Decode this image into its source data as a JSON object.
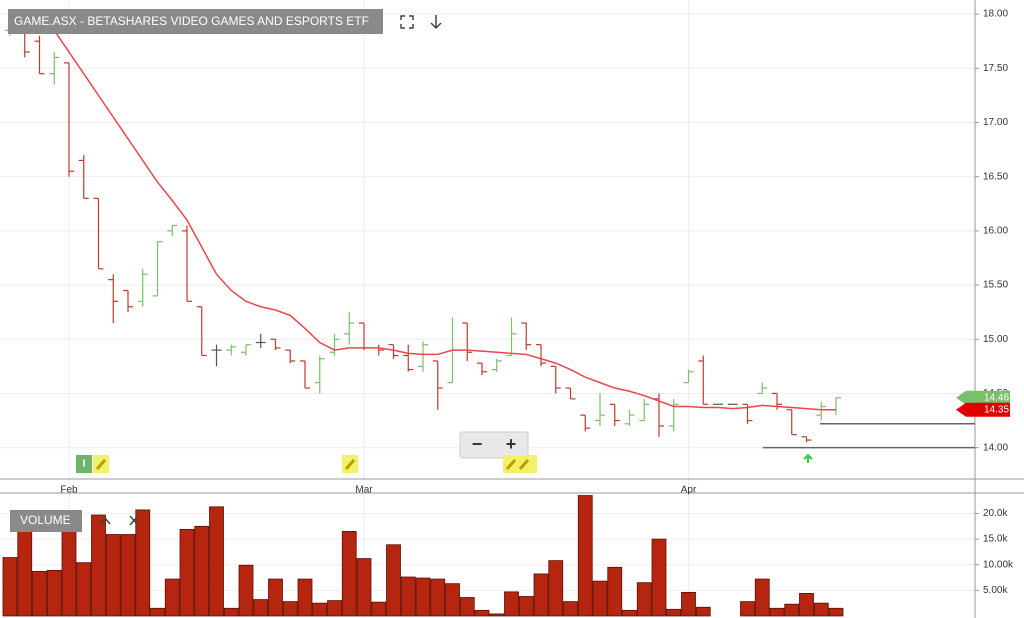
{
  "title": "GAME.ASX - BETASHARES VIDEO GAMES AND ESPORTS ETF",
  "controls": {
    "zoom_out": "−",
    "zoom_in": "+"
  },
  "events": [
    {
      "label": "I"
    }
  ],
  "chart_data": [
    {
      "type": "ohlc",
      "categories": [
        null,
        null,
        null,
        null,
        "Feb",
        null,
        null,
        null,
        null,
        null,
        null,
        null,
        null,
        null,
        null,
        null,
        null,
        null,
        null,
        null,
        null,
        null,
        null,
        null,
        "Mar",
        null,
        null,
        null,
        null,
        null,
        null,
        null,
        null,
        null,
        null,
        null,
        null,
        null,
        null,
        null,
        null,
        null,
        null,
        null,
        null,
        null,
        "Apr",
        null,
        null,
        null,
        null,
        null,
        null,
        null,
        null,
        null,
        null
      ],
      "open": [
        17.85,
        17.85,
        17.75,
        17.45,
        17.55,
        16.65,
        16.3,
        15.55,
        15.45,
        15.35,
        15.4,
        16.0,
        16.0,
        15.3,
        14.9,
        14.9,
        14.88,
        14.97,
        15.0,
        14.9,
        14.8,
        14.6,
        14.88,
        15.05,
        15.15,
        14.92,
        14.95,
        14.85,
        14.75,
        14.8,
        14.6,
        15.15,
        14.78,
        14.72,
        14.85,
        15.15,
        14.95,
        14.75,
        14.55,
        14.3,
        14.25,
        14.4,
        14.22,
        14.25,
        14.45,
        14.2,
        14.6,
        14.8,
        14.4,
        14.4,
        14.4,
        14.5,
        14.5,
        14.35,
        14.1,
        14.3,
        14.35
      ],
      "high": [
        17.95,
        17.85,
        17.8,
        17.65,
        17.55,
        16.7,
        16.3,
        15.6,
        15.45,
        15.65,
        15.9,
        16.05,
        16.05,
        15.3,
        14.95,
        14.95,
        14.95,
        15.05,
        15.0,
        14.9,
        14.8,
        14.85,
        15.05,
        15.25,
        15.15,
        14.95,
        14.95,
        14.95,
        14.98,
        14.8,
        15.2,
        15.15,
        14.78,
        14.82,
        15.2,
        15.15,
        14.95,
        14.75,
        14.55,
        14.3,
        14.5,
        14.4,
        14.35,
        14.45,
        14.5,
        14.45,
        14.72,
        14.85,
        14.4,
        14.4,
        14.4,
        14.6,
        14.5,
        14.35,
        14.1,
        14.42,
        14.46
      ],
      "low": [
        17.8,
        17.6,
        17.45,
        17.35,
        16.5,
        16.3,
        15.65,
        15.15,
        15.25,
        15.3,
        15.4,
        15.95,
        15.35,
        14.85,
        14.75,
        14.85,
        14.85,
        14.92,
        14.9,
        14.78,
        14.55,
        14.5,
        14.85,
        14.95,
        14.9,
        14.85,
        14.82,
        14.7,
        14.7,
        14.35,
        14.6,
        14.8,
        14.67,
        14.7,
        14.85,
        14.9,
        14.75,
        14.5,
        14.45,
        14.15,
        14.2,
        14.2,
        14.2,
        14.25,
        14.1,
        14.15,
        14.6,
        14.4,
        14.4,
        14.4,
        14.22,
        14.5,
        14.35,
        14.12,
        14.05,
        14.25,
        14.3
      ],
      "close": [
        17.9,
        17.65,
        17.45,
        17.6,
        16.55,
        16.3,
        15.65,
        15.35,
        15.3,
        15.6,
        15.9,
        16.05,
        15.35,
        14.85,
        14.9,
        14.93,
        14.95,
        14.97,
        14.92,
        14.8,
        14.55,
        14.82,
        15.0,
        15.15,
        14.92,
        14.9,
        14.85,
        14.72,
        14.95,
        14.55,
        14.9,
        14.88,
        14.7,
        14.8,
        15.05,
        14.95,
        14.78,
        14.55,
        14.45,
        14.18,
        14.3,
        14.25,
        14.3,
        14.4,
        14.2,
        14.4,
        14.7,
        14.4,
        14.4,
        14.4,
        14.25,
        14.55,
        14.4,
        14.12,
        14.07,
        14.38,
        14.46
      ],
      "up_color": "#79c06b",
      "down_color": "#c0392b",
      "flat_color": "#555555",
      "moving_average": {
        "color": "#e8474c",
        "values": [
          null,
          null,
          18.0,
          17.85,
          17.65,
          17.45,
          17.25,
          17.05,
          16.85,
          16.65,
          16.45,
          16.28,
          16.1,
          15.85,
          15.6,
          15.45,
          15.35,
          15.3,
          15.27,
          15.22,
          15.1,
          14.97,
          14.9,
          14.92,
          14.92,
          14.92,
          14.9,
          14.87,
          14.86,
          14.86,
          14.9,
          14.9,
          14.89,
          14.88,
          14.87,
          14.86,
          14.82,
          14.78,
          14.72,
          14.65,
          14.6,
          14.55,
          14.52,
          14.48,
          14.43,
          14.38,
          14.38,
          14.37,
          14.37,
          14.36,
          14.37,
          14.39,
          14.38,
          14.37,
          14.36,
          14.35,
          14.35
        ]
      },
      "price_tags": [
        {
          "value": 14.46,
          "label": "14.46",
          "color": "#79c06b"
        },
        {
          "value": 14.35,
          "label": "14.35",
          "color": "#e00000"
        }
      ],
      "drawn_lines": [
        {
          "value": 14.22
        },
        {
          "value": 14.0
        }
      ],
      "ylim": [
        13.72,
        18.13
      ],
      "yticks": [
        {
          "value": 14,
          "label": "14.00"
        },
        {
          "value": 14.5,
          "label": "14.50"
        },
        {
          "value": 15,
          "label": "15.00"
        },
        {
          "value": 15.5,
          "label": "15.50"
        },
        {
          "value": 16,
          "label": "16.00"
        },
        {
          "value": 16.5,
          "label": "16.50"
        },
        {
          "value": 17,
          "label": "17.00"
        },
        {
          "value": 17.5,
          "label": "17.50"
        },
        {
          "value": 18,
          "label": "18.00"
        }
      ],
      "grid": true
    },
    {
      "type": "bar",
      "title": "VOLUME",
      "color": "#b5250f",
      "values": [
        11400,
        17500,
        8700,
        8900,
        17500,
        10400,
        19700,
        15900,
        15900,
        20700,
        1500,
        7200,
        16900,
        17500,
        21300,
        1500,
        9900,
        3200,
        7200,
        2800,
        7200,
        2500,
        3000,
        16500,
        11200,
        2700,
        13900,
        7600,
        7400,
        7200,
        6300,
        3600,
        1100,
        400,
        4700,
        3800,
        8200,
        10800,
        2800,
        23500,
        6800,
        9500,
        1100,
        6500,
        15000,
        1300,
        4600,
        1700,
        0,
        0,
        2800,
        7200,
        1500,
        2300,
        4400,
        2500,
        1500
      ],
      "ylim": [
        -400,
        24000
      ],
      "yticks": [
        {
          "value": 5000,
          "label": "5.00k"
        },
        {
          "value": 10000,
          "label": "10.00k"
        },
        {
          "value": 15000,
          "label": "15.0k"
        },
        {
          "value": 20000,
          "label": "20.0k"
        }
      ],
      "grid": true
    }
  ]
}
